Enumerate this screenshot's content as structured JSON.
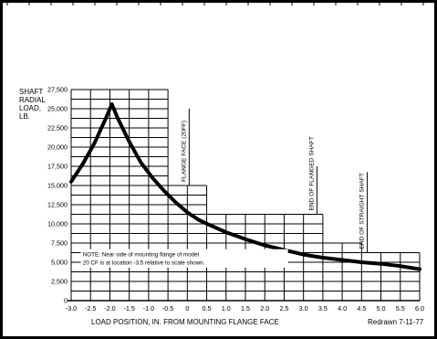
{
  "page": {
    "y_axis_label": [
      "SHAFT",
      "RADIAL",
      "LOAD,",
      "LB."
    ],
    "x_axis_label": "LOAD POSITION, IN. FROM MOUNTING FLANGE FACE",
    "footer": "Redrawn 7-11-77",
    "note": [
      "NOTE: Near side of mounting flange of model",
      "20 CF is at location -3.5 relative to scale shown."
    ]
  },
  "chart_data": {
    "type": "line",
    "xlabel": "LOAD POSITION, IN. FROM MOUNTING FLANGE FACE",
    "ylabel": "SHAFT RADIAL LOAD, LB.",
    "xlim": [
      -3.0,
      6.0
    ],
    "ylim": [
      0,
      27500
    ],
    "x_ticks": [
      "-3.0",
      "-2.5",
      "-2.0",
      "-1.5",
      "-1.0",
      "-0.5",
      "0",
      "0.5",
      "1.0",
      "1.5",
      "2.0",
      "2.5",
      "3.0",
      "3.5",
      "4.0",
      "4.5",
      "5.0",
      "5.5",
      "6.0"
    ],
    "y_ticks": [
      "0",
      "2,500",
      "5,000",
      "7,500",
      "10,000",
      "12,500",
      "15,000",
      "17,500",
      "20,000",
      "22,500",
      "25,000",
      "27,500"
    ],
    "series": [
      {
        "x": [
          -3.0,
          -2.7,
          -2.4,
          -2.1,
          -1.95,
          -1.8,
          -1.5,
          -1.2,
          -0.9,
          -0.6,
          -0.3,
          0.0,
          0.3,
          0.6,
          1.0,
          1.5,
          2.0,
          2.5,
          3.0,
          3.5,
          4.0,
          4.5,
          5.0,
          5.5,
          6.0
        ],
        "y": [
          15500,
          17800,
          20500,
          23800,
          25600,
          23800,
          20700,
          18000,
          16000,
          14300,
          12800,
          11500,
          10500,
          9800,
          8900,
          8000,
          7200,
          6600,
          6000,
          5600,
          5300,
          5000,
          4800,
          4500,
          4100
        ]
      }
    ],
    "annotations": [
      {
        "text": "FLANGE FACE (20FF)",
        "x": 0.0
      },
      {
        "text": "END OF FLANGED SHAFT",
        "x": 3.3
      },
      {
        "text": "END OF STRAIGHT SHAFT",
        "x": 4.6
      }
    ]
  }
}
